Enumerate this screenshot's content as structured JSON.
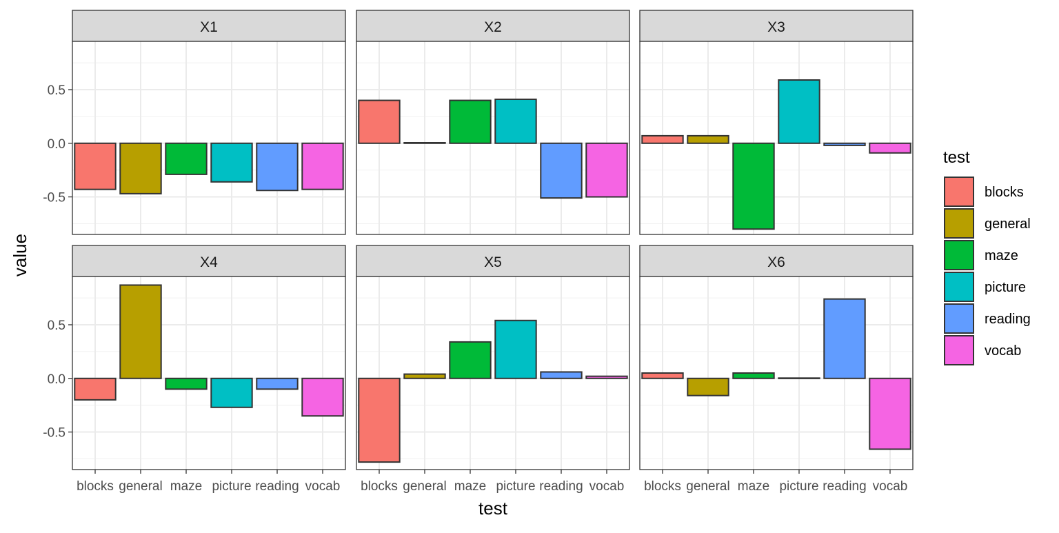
{
  "chart_data": {
    "type": "bar",
    "faceted": true,
    "xlabel": "test",
    "ylabel": "value",
    "ylim": [
      -0.85,
      0.95
    ],
    "yticks": [
      -0.5,
      0.0,
      0.5
    ],
    "ytick_labels": [
      "-0.5",
      "0.0",
      "0.5"
    ],
    "grid": true,
    "categories": [
      "blocks",
      "general",
      "maze",
      "picture",
      "reading",
      "vocab"
    ],
    "colors": {
      "blocks": "#F8766D",
      "general": "#B79F00",
      "maze": "#00BA38",
      "picture": "#00BFC4",
      "reading": "#619CFF",
      "vocab": "#F564E3"
    },
    "legend": {
      "title": "test",
      "placement": "right",
      "entries": [
        "blocks",
        "general",
        "maze",
        "picture",
        "reading",
        "vocab"
      ]
    },
    "panels": [
      {
        "name": "X1",
        "values": [
          -0.43,
          -0.47,
          -0.29,
          -0.36,
          -0.44,
          -0.43
        ]
      },
      {
        "name": "X2",
        "values": [
          0.4,
          0.005,
          0.4,
          0.41,
          -0.51,
          -0.5
        ]
      },
      {
        "name": "X3",
        "values": [
          0.07,
          0.07,
          -0.8,
          0.59,
          -0.02,
          -0.09
        ]
      },
      {
        "name": "X4",
        "values": [
          -0.2,
          0.87,
          -0.1,
          -0.27,
          -0.1,
          -0.35
        ]
      },
      {
        "name": "X5",
        "values": [
          -0.78,
          0.04,
          0.34,
          0.54,
          0.06,
          0.02
        ]
      },
      {
        "name": "X6",
        "values": [
          0.05,
          -0.16,
          0.05,
          0.003,
          0.74,
          -0.66
        ]
      }
    ]
  }
}
